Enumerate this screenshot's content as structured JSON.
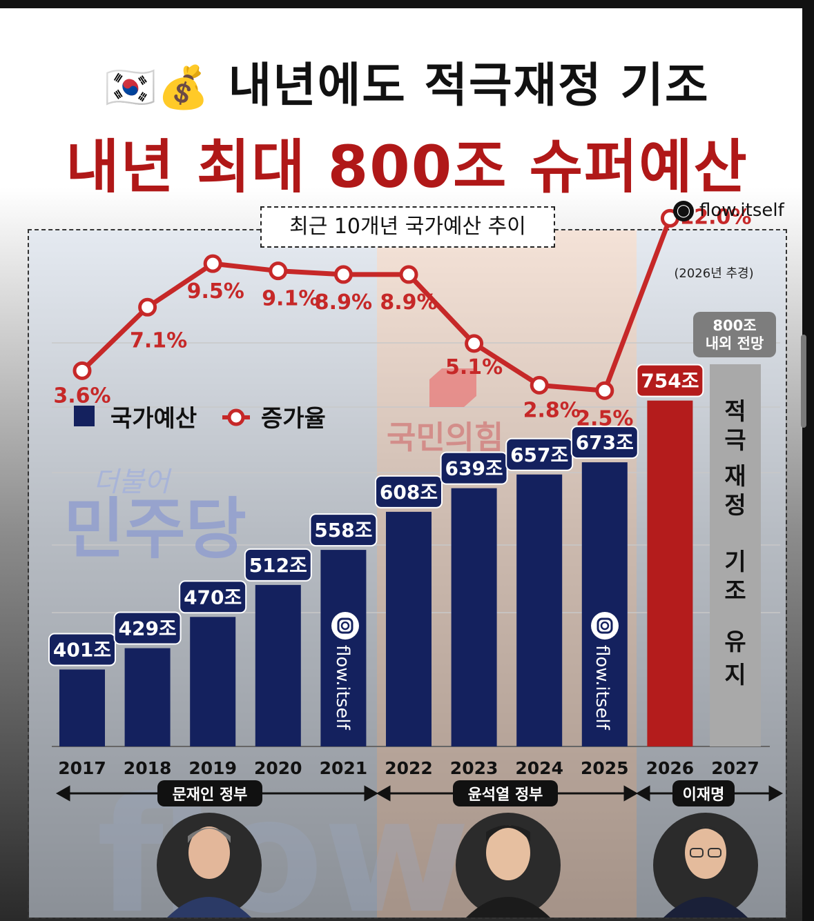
{
  "title": "내년에도 적극재정 기조",
  "flag_icons": [
    "korea-flag-icon",
    "money-bag-icon"
  ],
  "headline": "내년 최대 800조 슈퍼예산",
  "handle": "flow.itself",
  "chart_data": {
    "type": "bar",
    "title": "최근 10개년 국가예산 추이",
    "categories": [
      "2017",
      "2018",
      "2019",
      "2020",
      "2021",
      "2022",
      "2023",
      "2024",
      "2025",
      "2026",
      "2027"
    ],
    "series": [
      {
        "name": "국가예산",
        "values": [
          401,
          429,
          470,
          512,
          558,
          608,
          639,
          657,
          673,
          754,
          null
        ],
        "labels": [
          "401조",
          "429조",
          "470조",
          "512조",
          "558조",
          "608조",
          "639조",
          "657조",
          "673조",
          "754조",
          ""
        ]
      },
      {
        "name": "증가율",
        "values": [
          3.6,
          7.1,
          9.5,
          9.1,
          8.9,
          8.9,
          5.1,
          2.8,
          2.5,
          12.0,
          null
        ],
        "labels": [
          "3.6%",
          "7.1%",
          "9.5%",
          "9.1%",
          "8.9%",
          "8.9%",
          "5.1%",
          "2.8%",
          "2.5%",
          "12.0%",
          ""
        ]
      }
    ],
    "rate_note": "(2026년 추경)",
    "forecast_badge": [
      "800조",
      "내외 전망"
    ],
    "forecast_text": [
      "적",
      "극",
      "재",
      "정",
      "기",
      "조",
      "유",
      "지"
    ],
    "colors": {
      "bar": "#14215e",
      "highlight": "#b41c1c",
      "forecast": "#a9a9a9",
      "line": "#c62828"
    }
  },
  "legend": {
    "budget": "국가예산",
    "rate": "증가율"
  },
  "party_watermarks": {
    "democrat_small": "더불어",
    "democrat": "민주당",
    "ppp": "국민의힘"
  },
  "eras": [
    {
      "label": "문재인 정부"
    },
    {
      "label": "윤석열 정부"
    },
    {
      "label": "이재명"
    }
  ]
}
